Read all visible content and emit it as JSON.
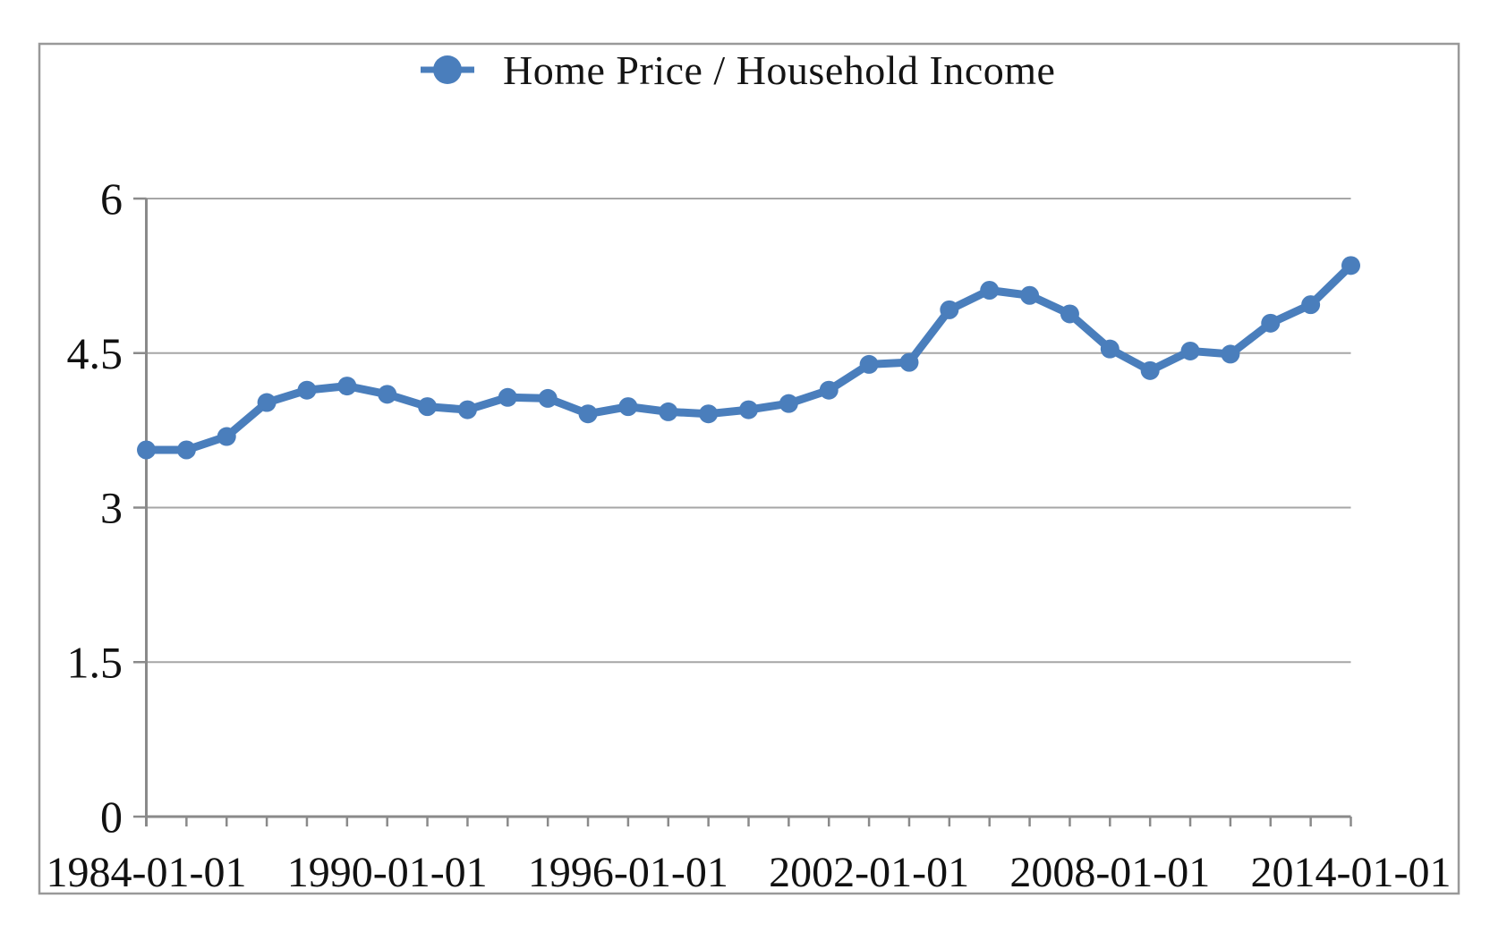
{
  "chart_data": {
    "type": "line",
    "title": "",
    "xlabel": "",
    "ylabel": "",
    "legend": {
      "label": "Home Price / Household Income",
      "position": "top-center",
      "marker": "circle-on-line"
    },
    "xlim": [
      1984,
      2014
    ],
    "ylim": [
      0,
      6
    ],
    "grid": "horizontal",
    "x_years": [
      1984,
      1985,
      1986,
      1987,
      1988,
      1989,
      1990,
      1991,
      1992,
      1993,
      1994,
      1995,
      1996,
      1997,
      1998,
      1999,
      2000,
      2001,
      2002,
      2003,
      2004,
      2005,
      2006,
      2007,
      2008,
      2009,
      2010,
      2011,
      2012,
      2013,
      2014
    ],
    "series": [
      {
        "name": "Home Price / Household Income",
        "values": [
          3.56,
          3.56,
          3.69,
          4.02,
          4.14,
          4.18,
          4.1,
          3.98,
          3.95,
          4.07,
          4.06,
          3.91,
          3.98,
          3.93,
          3.91,
          3.95,
          4.01,
          4.14,
          4.39,
          4.41,
          4.92,
          5.11,
          5.06,
          4.88,
          4.54,
          4.33,
          4.52,
          4.49,
          4.79,
          4.97,
          5.35
        ]
      }
    ],
    "x_tick_labels": [
      {
        "year": 1984,
        "label": "1984-01-01"
      },
      {
        "year": 1990,
        "label": "1990-01-01"
      },
      {
        "year": 1996,
        "label": "1996-01-01"
      },
      {
        "year": 2002,
        "label": "2002-01-01"
      },
      {
        "year": 2008,
        "label": "2008-01-01"
      },
      {
        "year": 2014,
        "label": "2014-01-01"
      }
    ],
    "y_ticks": [
      {
        "value": 0,
        "label": "0"
      },
      {
        "value": 1.5,
        "label": "1.5"
      },
      {
        "value": 3,
        "label": "3"
      },
      {
        "value": 4.5,
        "label": "4.5"
      },
      {
        "value": 6,
        "label": "6"
      }
    ],
    "colors": {
      "series": "#4a7ebc",
      "gridline": "#a6a6a6",
      "axis": "#8a8a8a",
      "border": "#999999",
      "text": "#111111"
    }
  }
}
